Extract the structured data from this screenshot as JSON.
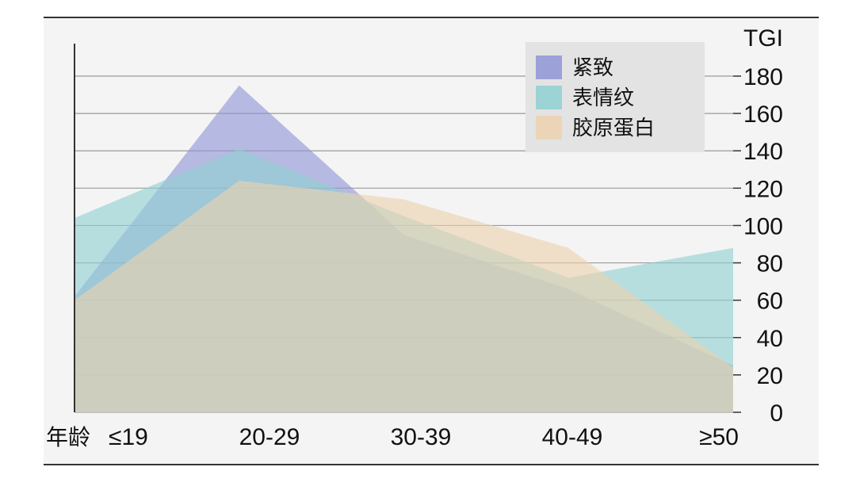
{
  "chart_data": {
    "type": "area",
    "y_axis_title": "TGI",
    "x_axis_prefix": "年龄",
    "categories": [
      "≤19",
      "20-29",
      "30-39",
      "40-49",
      "≥50"
    ],
    "ylim": [
      0,
      180
    ],
    "yticks": [
      0,
      20,
      40,
      60,
      80,
      100,
      120,
      140,
      160,
      180
    ],
    "grid": true,
    "legend_position": "top-right",
    "series": [
      {
        "name": "紧致",
        "color": "#8f95d6",
        "x": [
          "≤19",
          "20-29",
          "30-39",
          "40-49",
          "≥50"
        ],
        "values": [
          62,
          175,
          95,
          66,
          25
        ]
      },
      {
        "name": "表情纹",
        "color": "#8fd0d2",
        "x": [
          "≤19",
          "20-29",
          "30-39",
          "40-49",
          "≥50"
        ],
        "values": [
          104,
          141,
          105,
          72,
          88
        ]
      },
      {
        "name": "胶原蛋白",
        "color": "#ecd2ae",
        "x": [
          "≤19",
          "20-29",
          "30-39",
          "40-49",
          "≥50"
        ],
        "values": [
          60,
          124,
          114,
          88,
          24
        ]
      }
    ]
  }
}
